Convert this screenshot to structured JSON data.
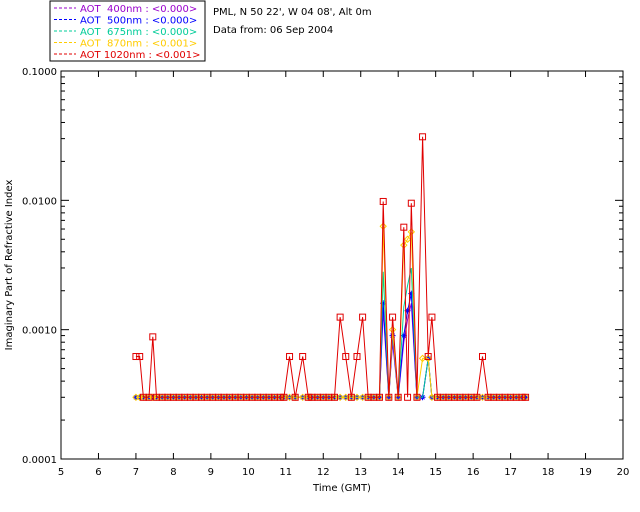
{
  "header": {
    "site": "PML, N 50 22', W 04 08', Alt 0m",
    "date": "Data from: 06 Sep 2004"
  },
  "chart_data": {
    "type": "line",
    "title": "",
    "xlabel": "Time (GMT)",
    "ylabel": "Imaginary Part of Refractive Index",
    "xlim": [
      5,
      20
    ],
    "ylim": [
      0.0001,
      0.1
    ],
    "yscale": "log",
    "x_ticks": [
      "5",
      "6",
      "7",
      "8",
      "9",
      "10",
      "11",
      "12",
      "13",
      "14",
      "15",
      "16",
      "17",
      "18",
      "19",
      "20"
    ],
    "y_ticks": [
      "0.0001",
      "0.0010",
      "0.0100",
      "0.1000"
    ],
    "legend_position": "top-left-outside",
    "x": [
      7.0,
      7.1,
      7.2,
      7.35,
      7.45,
      7.55,
      7.7,
      7.85,
      8.0,
      8.15,
      8.3,
      8.45,
      8.6,
      8.75,
      8.9,
      9.05,
      9.2,
      9.35,
      9.5,
      9.65,
      9.8,
      9.95,
      10.1,
      10.25,
      10.4,
      10.55,
      10.7,
      10.85,
      10.95,
      11.1,
      11.25,
      11.45,
      11.6,
      11.7,
      11.85,
      12.0,
      12.15,
      12.3,
      12.45,
      12.6,
      12.75,
      12.9,
      13.05,
      13.2,
      13.35,
      13.5,
      13.6,
      13.75,
      13.85,
      14.0,
      14.15,
      14.25,
      14.35,
      14.5,
      14.65,
      14.8,
      14.9,
      15.05,
      15.2,
      15.35,
      15.5,
      15.65,
      15.8,
      15.95,
      16.1,
      16.25,
      16.4,
      16.55,
      16.7,
      16.85,
      17.0,
      17.15,
      17.3,
      17.4
    ],
    "series": [
      {
        "name": "AOT  400nm : <0.000>",
        "color": "#9900cc",
        "marker": "none",
        "values": [
          0.0003,
          0.0003,
          0.0003,
          0.0003,
          0.0003,
          0.0003,
          0.0003,
          0.0003,
          0.0003,
          0.0003,
          0.0003,
          0.0003,
          0.0003,
          0.0003,
          0.0003,
          0.0003,
          0.0003,
          0.0003,
          0.0003,
          0.0003,
          0.0003,
          0.0003,
          0.0003,
          0.0003,
          0.0003,
          0.0003,
          0.0003,
          0.0003,
          0.0003,
          0.0003,
          0.0003,
          0.0003,
          0.0003,
          0.0003,
          0.0003,
          0.0003,
          0.0003,
          0.0003,
          0.0003,
          0.0003,
          0.0003,
          0.0003,
          0.0003,
          0.0003,
          0.0003,
          0.0003,
          0.0014,
          0.0003,
          0.0008,
          0.0003,
          0.0008,
          0.0012,
          0.0016,
          0.0003,
          0.0003,
          0.0006,
          0.0003,
          0.0003,
          0.0003,
          0.0003,
          0.0003,
          0.0003,
          0.0003,
          0.0003,
          0.0003,
          0.0003,
          0.0003,
          0.0003,
          0.0003,
          0.0003,
          0.0003,
          0.0003,
          0.0003,
          0.0003
        ]
      },
      {
        "name": "AOT  500nm : <0.000>",
        "color": "#0000ff",
        "marker": "star",
        "values": [
          0.0003,
          0.0003,
          0.0003,
          0.0003,
          0.0003,
          0.0003,
          0.0003,
          0.0003,
          0.0003,
          0.0003,
          0.0003,
          0.0003,
          0.0003,
          0.0003,
          0.0003,
          0.0003,
          0.0003,
          0.0003,
          0.0003,
          0.0003,
          0.0003,
          0.0003,
          0.0003,
          0.0003,
          0.0003,
          0.0003,
          0.0003,
          0.0003,
          0.0003,
          0.0003,
          0.0003,
          0.0003,
          0.0003,
          0.0003,
          0.0003,
          0.0003,
          0.0003,
          0.0003,
          0.0003,
          0.0003,
          0.0003,
          0.0003,
          0.0003,
          0.0003,
          0.0003,
          0.0003,
          0.0016,
          0.0003,
          0.0009,
          0.0003,
          0.0009,
          0.0014,
          0.0019,
          0.0003,
          0.0003,
          0.0006,
          0.0003,
          0.0003,
          0.0003,
          0.0003,
          0.0003,
          0.0003,
          0.0003,
          0.0003,
          0.0003,
          0.0003,
          0.0003,
          0.0003,
          0.0003,
          0.0003,
          0.0003,
          0.0003,
          0.0003,
          0.0003
        ]
      },
      {
        "name": "AOT  675nm : <0.000>",
        "color": "#00cc99",
        "marker": "none",
        "values": [
          0.0003,
          0.0003,
          0.0003,
          0.0003,
          0.0003,
          0.0003,
          0.0003,
          0.0003,
          0.0003,
          0.0003,
          0.0003,
          0.0003,
          0.0003,
          0.0003,
          0.0003,
          0.0003,
          0.0003,
          0.0003,
          0.0003,
          0.0003,
          0.0003,
          0.0003,
          0.0003,
          0.0003,
          0.0003,
          0.0003,
          0.0003,
          0.0003,
          0.0003,
          0.0003,
          0.0003,
          0.0003,
          0.0003,
          0.0003,
          0.0003,
          0.0003,
          0.0003,
          0.0003,
          0.0003,
          0.0003,
          0.0003,
          0.0003,
          0.0003,
          0.0003,
          0.0003,
          0.0003,
          0.0028,
          0.0003,
          0.001,
          0.0003,
          0.0015,
          0.0022,
          0.003,
          0.0003,
          0.0003,
          0.0006,
          0.0003,
          0.0003,
          0.0003,
          0.0003,
          0.0003,
          0.0003,
          0.0003,
          0.0003,
          0.0003,
          0.0003,
          0.0003,
          0.0003,
          0.0003,
          0.0003,
          0.0003,
          0.0003,
          0.0003,
          0.0003
        ]
      },
      {
        "name": "AOT  870nm : <0.001>",
        "color": "#ffcc00",
        "marker": "diamond",
        "values": [
          0.0003,
          0.0003,
          0.0003,
          0.0003,
          0.0003,
          0.0003,
          0.0003,
          0.0003,
          0.0003,
          0.0003,
          0.0003,
          0.0003,
          0.0003,
          0.0003,
          0.0003,
          0.0003,
          0.0003,
          0.0003,
          0.0003,
          0.0003,
          0.0003,
          0.0003,
          0.0003,
          0.0003,
          0.0003,
          0.0003,
          0.0003,
          0.0003,
          0.0003,
          0.0003,
          0.0003,
          0.0003,
          0.0003,
          0.0003,
          0.0003,
          0.0003,
          0.0003,
          0.0003,
          0.0003,
          0.0003,
          0.0003,
          0.0003,
          0.0003,
          0.0003,
          0.0003,
          0.0003,
          0.0063,
          0.0003,
          0.001,
          0.0003,
          0.0045,
          0.005,
          0.0057,
          0.0003,
          0.0006,
          0.0006,
          0.0003,
          0.0003,
          0.0003,
          0.0003,
          0.0003,
          0.0003,
          0.0003,
          0.0003,
          0.0003,
          0.0003,
          0.0003,
          0.0003,
          0.0003,
          0.0003,
          0.0003,
          0.0003,
          0.0003,
          0.0003
        ]
      },
      {
        "name": "AOT 1020nm : <0.001>",
        "color": "#e00000",
        "marker": "square",
        "values": [
          0.00062,
          0.00062,
          0.0003,
          0.0003,
          0.00088,
          0.0003,
          0.0003,
          0.0003,
          0.0003,
          0.0003,
          0.0003,
          0.0003,
          0.0003,
          0.0003,
          0.0003,
          0.0003,
          0.0003,
          0.0003,
          0.0003,
          0.0003,
          0.0003,
          0.0003,
          0.0003,
          0.0003,
          0.0003,
          0.0003,
          0.0003,
          0.0003,
          0.0003,
          0.00062,
          0.0003,
          0.00062,
          0.0003,
          0.0003,
          0.0003,
          0.0003,
          0.0003,
          0.0003,
          0.00125,
          0.00062,
          0.0003,
          0.00062,
          0.00125,
          0.0003,
          0.0003,
          0.0003,
          0.0098,
          0.0003,
          0.00125,
          0.0003,
          0.0062,
          0.0003,
          0.0095,
          0.0003,
          0.031,
          0.00062,
          0.00125,
          0.0003,
          0.0003,
          0.0003,
          0.0003,
          0.0003,
          0.0003,
          0.0003,
          0.0003,
          0.00062,
          0.0003,
          0.0003,
          0.0003,
          0.0003,
          0.0003,
          0.0003,
          0.0003,
          0.0003
        ]
      }
    ]
  }
}
